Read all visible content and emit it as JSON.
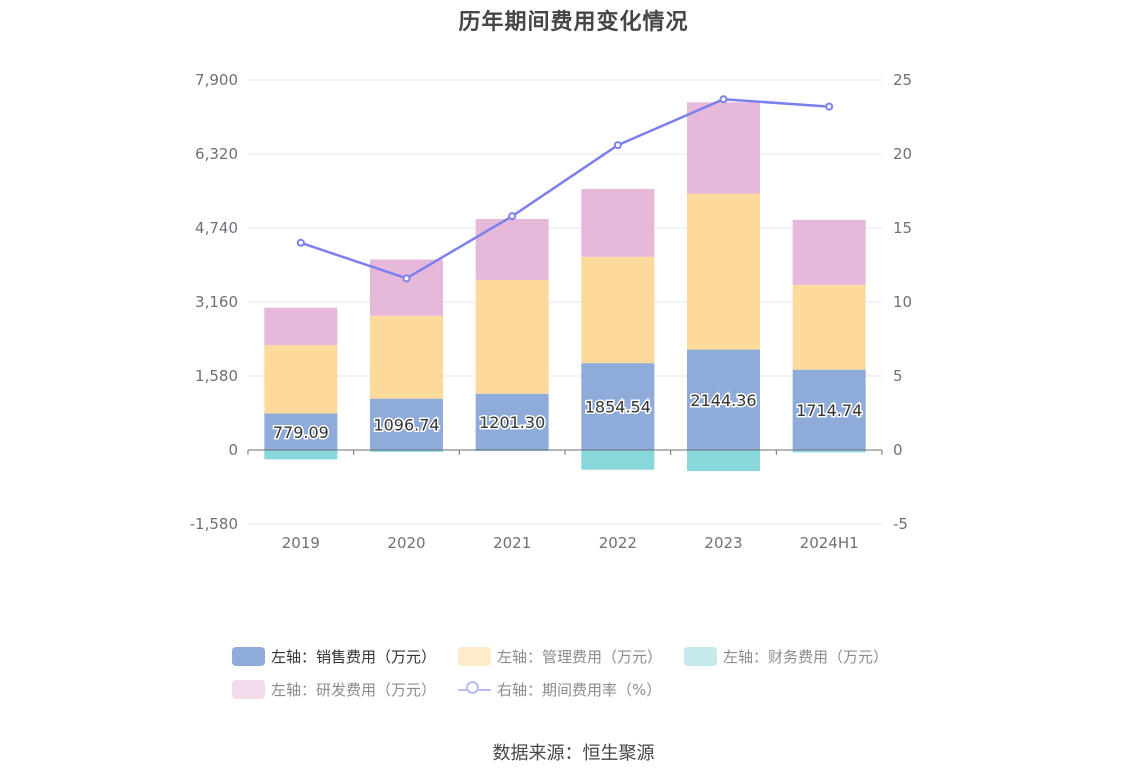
{
  "chart_data": {
    "type": "bar",
    "title": "历年期间费用变化情况",
    "categories": [
      "2019",
      "2020",
      "2021",
      "2022",
      "2023",
      "2024H1"
    ],
    "left_axis": {
      "min": -1580,
      "max": 7900,
      "ticks": [
        "-1,580",
        "0",
        "1,580",
        "3,160",
        "4,740",
        "6,320",
        "7,900"
      ],
      "tick_values": [
        -1580,
        0,
        1580,
        3160,
        4740,
        6320,
        7900
      ]
    },
    "right_axis": {
      "min": -5,
      "max": 25,
      "ticks": [
        "-5",
        "0",
        "5",
        "10",
        "15",
        "20",
        "25"
      ],
      "tick_values": [
        -5,
        0,
        5,
        10,
        15,
        20,
        25
      ]
    },
    "grid": true,
    "legend_position": "bottom",
    "series": [
      {
        "name": "左轴：销售费用（万元）",
        "type": "bar",
        "axis": "left",
        "color": "#8eabda",
        "values": [
          779.09,
          1096.74,
          1201.3,
          1854.54,
          2144.36,
          1714.74
        ],
        "labels": [
          "779.09",
          "1096.74",
          "1201.30",
          "1854.54",
          "2144.36",
          "1714.74"
        ]
      },
      {
        "name": "左轴：管理费用（万元）",
        "type": "bar",
        "axis": "left",
        "color": "#fdd99c",
        "values": [
          1460,
          1770,
          2430,
          2270,
          3330,
          1810
        ]
      },
      {
        "name": "左轴：财务费用（万元）",
        "type": "bar",
        "axis": "left",
        "color": "#88d8db",
        "values": [
          -200,
          -40,
          -20,
          -420,
          -450,
          -50
        ]
      },
      {
        "name": "左轴：研发费用（万元）",
        "type": "bar",
        "axis": "left",
        "color": "#e6b9da",
        "values": [
          800,
          1200,
          1300,
          1450,
          1950,
          1390
        ]
      },
      {
        "name": "右轴：期间费用率（%）",
        "type": "line",
        "axis": "right",
        "color": "#7b80ed",
        "values": [
          14.0,
          11.6,
          15.8,
          20.6,
          23.7,
          23.2
        ]
      }
    ]
  },
  "source": "数据来源：恒生聚源"
}
